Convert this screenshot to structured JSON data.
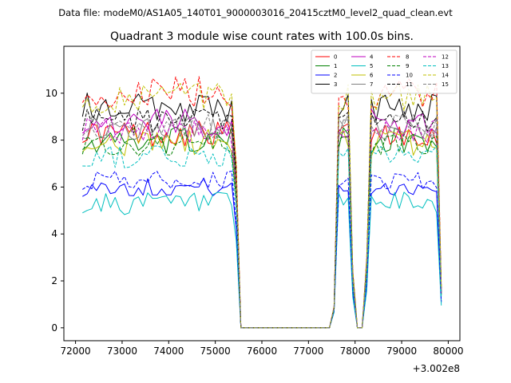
{
  "chart_data": {
    "type": "line",
    "suptitle": "Data file: modeM0/AS1A05_140T01_9000003016_20415cztM0_level2_quad_clean.evt",
    "title": "Quadrant 3 module wise count rates with 100.0s bins.",
    "xlabel": "",
    "ylabel": "",
    "x_offset_label": "+3.002e8",
    "xlim": [
      71750,
      80250
    ],
    "ylim": [
      -0.55,
      12.0
    ],
    "x_ticks": [
      72000,
      73000,
      74000,
      75000,
      76000,
      77000,
      78000,
      79000,
      80000
    ],
    "y_ticks": [
      0,
      2,
      4,
      6,
      8,
      10
    ],
    "x_tick_labels": [
      "72000",
      "73000",
      "74000",
      "75000",
      "76000",
      "77000",
      "78000",
      "79000",
      "80000"
    ],
    "y_tick_labels": [
      "0",
      "2",
      "4",
      "6",
      "8",
      "10"
    ],
    "legend_location": "top-right",
    "legend_columns": 4,
    "time": {
      "segment1": [
        72150,
        75450
      ],
      "step": 100,
      "gap1": [
        75550,
        77450
      ],
      "segment2": [
        77550,
        77950
      ],
      "dip": [
        78050,
        78150
      ],
      "segment3": [
        78250,
        79850
      ]
    },
    "series": [
      {
        "name": "0",
        "color": "#ff0000",
        "style": "solid",
        "level": 8.3,
        "noise": 0.35
      },
      {
        "name": "1",
        "color": "#008000",
        "style": "solid",
        "level": 8.0,
        "noise": 0.35
      },
      {
        "name": "2",
        "color": "#0000ff",
        "style": "solid",
        "level": 6.0,
        "noise": 0.25
      },
      {
        "name": "3",
        "color": "#000000",
        "style": "solid",
        "level": 9.4,
        "noise": 0.4
      },
      {
        "name": "4",
        "color": "#bf00bf",
        "style": "solid",
        "level": 8.7,
        "noise": 0.4
      },
      {
        "name": "5",
        "color": "#00bfbf",
        "style": "solid",
        "level": 5.3,
        "noise": 0.3
      },
      {
        "name": "6",
        "color": "#bfbf00",
        "style": "solid",
        "level": 7.9,
        "noise": 0.4
      },
      {
        "name": "7",
        "color": "#808080",
        "style": "solid",
        "level": 8.5,
        "noise": 0.35
      },
      {
        "name": "8",
        "color": "#ff0000",
        "style": "dashed",
        "level": 10.0,
        "noise": 0.45
      },
      {
        "name": "9",
        "color": "#008000",
        "style": "dashed",
        "level": 7.8,
        "noise": 0.35
      },
      {
        "name": "10",
        "color": "#0000ff",
        "style": "dashed",
        "level": 6.3,
        "noise": 0.25
      },
      {
        "name": "11",
        "color": "#000000",
        "style": "dashed",
        "level": 8.8,
        "noise": 0.35
      },
      {
        "name": "12",
        "color": "#bf00bf",
        "style": "dashed",
        "level": 8.4,
        "noise": 0.35
      },
      {
        "name": "13",
        "color": "#00bfbf",
        "style": "dashed",
        "level": 7.3,
        "noise": 0.3
      },
      {
        "name": "14",
        "color": "#bfbf00",
        "style": "dashed",
        "level": 9.8,
        "noise": 0.4
      },
      {
        "name": "15",
        "color": "#808080",
        "style": "dashed",
        "level": 8.6,
        "noise": 0.35
      }
    ]
  }
}
